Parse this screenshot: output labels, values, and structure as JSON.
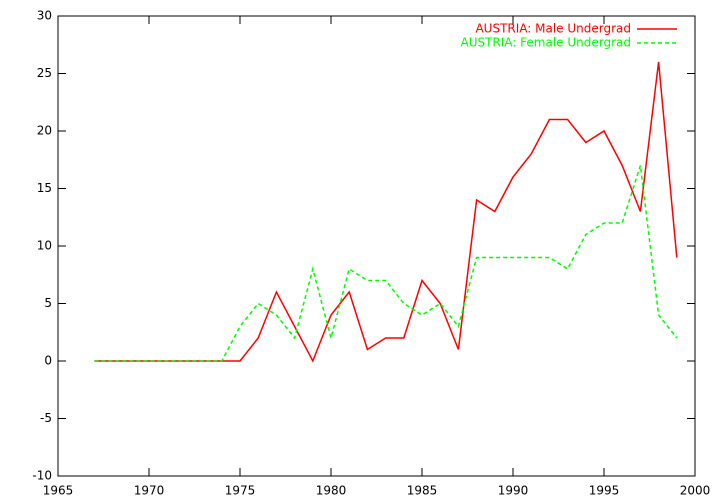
{
  "chart_data": {
    "type": "line",
    "x": [
      1967,
      1968,
      1969,
      1970,
      1971,
      1972,
      1973,
      1974,
      1975,
      1976,
      1977,
      1978,
      1979,
      1980,
      1981,
      1982,
      1983,
      1984,
      1985,
      1986,
      1987,
      1988,
      1989,
      1990,
      1991,
      1992,
      1993,
      1994,
      1995,
      1996,
      1997,
      1998,
      1999
    ],
    "series": [
      {
        "name": "AUSTRIA: Male Undergrad",
        "color": "#ff0000",
        "dashed": false,
        "values": [
          0,
          0,
          0,
          0,
          0,
          0,
          0,
          0,
          0,
          2,
          6,
          3,
          0,
          4,
          6,
          1,
          2,
          2,
          7,
          5,
          1,
          14,
          13,
          16,
          18,
          21,
          21,
          19,
          20,
          17,
          13,
          26,
          9
        ]
      },
      {
        "name": "AUSTRIA: Female Undergrad",
        "color": "#00ff00",
        "dashed": true,
        "values": [
          0,
          0,
          0,
          0,
          0,
          0,
          0,
          0,
          3,
          5,
          4,
          2,
          8,
          2,
          8,
          7,
          7,
          5,
          4,
          5,
          3,
          9,
          9,
          9,
          9,
          9,
          8,
          11,
          12,
          12,
          17,
          4,
          2
        ]
      }
    ],
    "xlim": [
      1965,
      2000
    ],
    "xticks": [
      1965,
      1970,
      1975,
      1980,
      1985,
      1990,
      1995,
      2000
    ],
    "ylim": [
      -10,
      30
    ],
    "yticks": [
      -10,
      -5,
      0,
      5,
      10,
      15,
      20,
      25,
      30
    ],
    "legend": "top-right"
  }
}
